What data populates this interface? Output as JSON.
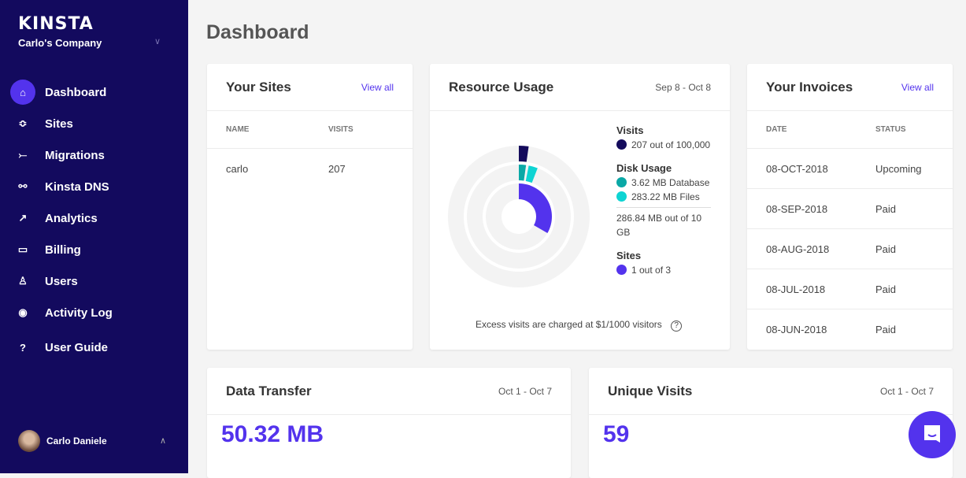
{
  "sidebar": {
    "logo": "KINSTA",
    "company": "Carlo's Company",
    "items": [
      {
        "label": "Dashboard",
        "icon": "home-icon",
        "glyph": "⌂",
        "active": true
      },
      {
        "label": "Sites",
        "icon": "layers-icon",
        "glyph": "≎"
      },
      {
        "label": "Migrations",
        "icon": "migrate-icon",
        "glyph": "⤚"
      },
      {
        "label": "Kinsta DNS",
        "icon": "dns-icon",
        "glyph": "⚯"
      },
      {
        "label": "Analytics",
        "icon": "trend-icon",
        "glyph": "↗"
      },
      {
        "label": "Billing",
        "icon": "card-icon",
        "glyph": "▭"
      },
      {
        "label": "Users",
        "icon": "user-add-icon",
        "glyph": "♙"
      },
      {
        "label": "Activity Log",
        "icon": "eye-icon",
        "glyph": "◉"
      },
      {
        "label": "User Guide",
        "icon": "help-icon",
        "glyph": "?"
      }
    ],
    "user": "Carlo Daniele"
  },
  "page_title": "Dashboard",
  "sites": {
    "title": "Your Sites",
    "view_all": "View all",
    "headers": [
      "NAME",
      "VISITS"
    ],
    "rows": [
      [
        "carlo",
        "207"
      ]
    ]
  },
  "resource": {
    "title": "Resource Usage",
    "range": "Sep 8 - Oct 8",
    "visits_label": "Visits",
    "visits_text": "207 out of 100,000",
    "disk_label": "Disk Usage",
    "db_text": "3.62 MB Database",
    "files_text": "283.22 MB Files",
    "disk_total": "286.84 MB out of 10 GB",
    "sites_label": "Sites",
    "sites_text": "1 out of 3",
    "note": "Excess visits are charged at $1/1000 visitors",
    "colors": {
      "visits": "#140b5c",
      "db": "#0aa8a6",
      "files": "#0ed4d3",
      "sites": "#5333ed",
      "track": "#f3f3f3"
    },
    "fractions": {
      "visits": 0.00207,
      "db": 0.00036,
      "files": 0.0283,
      "sites": 0.3333
    }
  },
  "invoices": {
    "title": "Your Invoices",
    "view_all": "View all",
    "headers": [
      "DATE",
      "STATUS"
    ],
    "rows": [
      [
        "08-OCT-2018",
        "Upcoming"
      ],
      [
        "08-SEP-2018",
        "Paid"
      ],
      [
        "08-AUG-2018",
        "Paid"
      ],
      [
        "08-JUL-2018",
        "Paid"
      ],
      [
        "08-JUN-2018",
        "Paid"
      ]
    ]
  },
  "transfer": {
    "title": "Data Transfer",
    "range": "Oct 1 - Oct 7",
    "value": "50.32 MB"
  },
  "unique": {
    "title": "Unique Visits",
    "range": "Oct 1 - Oct 7",
    "value": "59"
  },
  "accent": "#5333ed",
  "sidebar_bg": "#130a5e"
}
